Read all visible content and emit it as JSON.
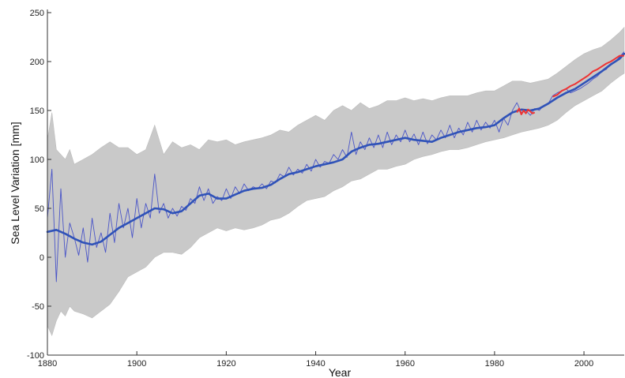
{
  "chart_data": {
    "type": "line",
    "title": "",
    "xlabel": "Year",
    "ylabel": "Sea Level Variation [mm]",
    "xlim": [
      1880,
      2009
    ],
    "ylim": [
      -100,
      250
    ],
    "x_ticks": [
      1880,
      1900,
      1920,
      1940,
      1960,
      1980,
      2000
    ],
    "y_ticks": [
      -100,
      -50,
      0,
      50,
      100,
      150,
      200,
      250
    ],
    "grid": false,
    "legend": "none",
    "colors": {
      "band": "#c9c9c9",
      "band_edge": "#bdbdbd",
      "annual_series": "#4a55c8",
      "smoothed_series": "#2f52b8",
      "satellite_series": "#ee3333",
      "axis": "#333333"
    },
    "series": [
      {
        "kind": "uncertainty-band",
        "x": [
          1880,
          1881,
          1882,
          1883,
          1884,
          1885,
          1886,
          1888,
          1890,
          1892,
          1894,
          1896,
          1898,
          1900,
          1902,
          1904,
          1906,
          1908,
          1910,
          1912,
          1914,
          1916,
          1918,
          1920,
          1922,
          1924,
          1926,
          1928,
          1930,
          1932,
          1934,
          1936,
          1938,
          1940,
          1942,
          1944,
          1946,
          1948,
          1950,
          1952,
          1954,
          1956,
          1958,
          1960,
          1962,
          1964,
          1966,
          1968,
          1970,
          1972,
          1974,
          1976,
          1978,
          1980,
          1982,
          1984,
          1986,
          1988,
          1990,
          1992,
          1994,
          1996,
          1998,
          2000,
          2002,
          2004,
          2006,
          2008,
          2009
        ],
        "lower": [
          -70,
          -80,
          -65,
          -55,
          -60,
          -50,
          -55,
          -58,
          -62,
          -55,
          -48,
          -35,
          -20,
          -15,
          -10,
          0,
          5,
          5,
          3,
          10,
          20,
          25,
          30,
          27,
          30,
          28,
          30,
          33,
          38,
          40,
          45,
          52,
          58,
          60,
          62,
          68,
          72,
          78,
          80,
          85,
          90,
          90,
          93,
          95,
          100,
          103,
          105,
          108,
          110,
          110,
          112,
          115,
          118,
          120,
          122,
          125,
          128,
          130,
          132,
          135,
          140,
          148,
          155,
          160,
          165,
          170,
          178,
          185,
          188
        ],
        "upper": [
          120,
          148,
          110,
          105,
          100,
          110,
          95,
          100,
          105,
          112,
          118,
          112,
          112,
          105,
          110,
          135,
          105,
          118,
          112,
          115,
          110,
          120,
          118,
          120,
          115,
          118,
          120,
          122,
          125,
          130,
          128,
          135,
          140,
          145,
          140,
          150,
          155,
          150,
          158,
          152,
          155,
          160,
          160,
          163,
          160,
          162,
          160,
          163,
          165,
          165,
          165,
          168,
          170,
          170,
          175,
          180,
          180,
          178,
          180,
          182,
          188,
          195,
          202,
          208,
          212,
          215,
          222,
          230,
          235
        ]
      },
      {
        "kind": "smoothed-reconstruction",
        "x": [
          1880,
          1882,
          1884,
          1886,
          1888,
          1890,
          1892,
          1894,
          1896,
          1898,
          1900,
          1902,
          1904,
          1906,
          1908,
          1910,
          1912,
          1914,
          1916,
          1918,
          1920,
          1922,
          1924,
          1926,
          1928,
          1930,
          1932,
          1934,
          1936,
          1938,
          1940,
          1942,
          1944,
          1946,
          1948,
          1950,
          1952,
          1954,
          1956,
          1958,
          1960,
          1962,
          1964,
          1966,
          1968,
          1970,
          1972,
          1974,
          1976,
          1978,
          1980,
          1982,
          1984,
          1986,
          1988,
          1990,
          1992,
          1994,
          1996,
          1998,
          2000,
          2002,
          2004,
          2006,
          2008,
          2009
        ],
        "values": [
          26,
          28,
          24,
          19,
          15,
          13,
          16,
          23,
          30,
          35,
          40,
          45,
          50,
          49,
          45,
          47,
          55,
          63,
          65,
          60,
          60,
          64,
          68,
          70,
          71,
          74,
          80,
          85,
          87,
          90,
          93,
          95,
          97,
          100,
          108,
          112,
          115,
          116,
          118,
          120,
          122,
          120,
          119,
          118,
          122,
          125,
          128,
          130,
          132,
          133,
          135,
          142,
          148,
          151,
          150,
          152,
          157,
          163,
          168,
          172,
          178,
          184,
          190,
          197,
          203,
          208
        ]
      },
      {
        "kind": "annual-reconstruction",
        "x": [
          1880,
          1881,
          1882,
          1883,
          1884,
          1885,
          1886,
          1887,
          1888,
          1889,
          1890,
          1891,
          1892,
          1893,
          1894,
          1895,
          1896,
          1897,
          1898,
          1899,
          1900,
          1901,
          1902,
          1903,
          1904,
          1905,
          1906,
          1907,
          1908,
          1909,
          1910,
          1911,
          1912,
          1913,
          1914,
          1915,
          1916,
          1917,
          1918,
          1919,
          1920,
          1921,
          1922,
          1923,
          1924,
          1925,
          1926,
          1927,
          1928,
          1929,
          1930,
          1931,
          1932,
          1933,
          1934,
          1935,
          1936,
          1937,
          1938,
          1939,
          1940,
          1941,
          1942,
          1943,
          1944,
          1945,
          1946,
          1947,
          1948,
          1949,
          1950,
          1951,
          1952,
          1953,
          1954,
          1955,
          1956,
          1957,
          1958,
          1959,
          1960,
          1961,
          1962,
          1963,
          1964,
          1965,
          1966,
          1967,
          1968,
          1969,
          1970,
          1971,
          1972,
          1973,
          1974,
          1975,
          1976,
          1977,
          1978,
          1979,
          1980,
          1981,
          1982,
          1983,
          1984,
          1985,
          1986,
          1987,
          1988,
          1989,
          1990,
          1991,
          1992,
          1993,
          1994,
          1995,
          1996,
          1997,
          1998,
          1999,
          2000,
          2001,
          2002,
          2003,
          2004,
          2005,
          2006,
          2007,
          2008,
          2009
        ],
        "values": [
          40,
          90,
          -25,
          70,
          0,
          35,
          20,
          2,
          30,
          -5,
          40,
          10,
          25,
          5,
          45,
          15,
          55,
          30,
          50,
          20,
          60,
          30,
          55,
          40,
          85,
          45,
          55,
          40,
          50,
          42,
          52,
          48,
          60,
          55,
          72,
          58,
          70,
          55,
          62,
          58,
          70,
          60,
          72,
          65,
          75,
          68,
          72,
          70,
          75,
          70,
          78,
          76,
          85,
          82,
          92,
          84,
          90,
          86,
          95,
          88,
          100,
          92,
          98,
          96,
          105,
          100,
          110,
          102,
          128,
          105,
          118,
          110,
          122,
          112,
          125,
          112,
          128,
          115,
          125,
          118,
          130,
          118,
          126,
          115,
          128,
          116,
          125,
          120,
          130,
          122,
          135,
          122,
          132,
          125,
          138,
          128,
          140,
          130,
          138,
          132,
          140,
          128,
          142,
          135,
          150,
          158,
          148,
          150,
          145,
          152,
          150,
          155,
          157,
          165,
          168,
          170,
          172,
          168,
          170,
          172,
          175,
          178,
          182,
          185,
          190,
          192,
          198,
          200,
          205,
          210
        ]
      },
      {
        "kind": "satellite-altimetry",
        "segments": [
          {
            "x": [
              1985,
              1985.5,
              1986,
              1986.5,
              1987,
              1987.5,
              1988,
              1988.5,
              1989
            ],
            "values": [
              148,
              152,
              146,
              150,
              147,
              151,
              149,
              147,
              148
            ]
          },
          {
            "x": [
              1993,
              1994,
              1995,
              1996,
              1997,
              1998,
              1999,
              2000,
              2001,
              2002,
              2003,
              2004,
              2005,
              2006,
              2007,
              2008,
              2009
            ],
            "values": [
              164,
              166,
              170,
              172,
              175,
              177,
              180,
              183,
              186,
              190,
              192,
              195,
              198,
              200,
              203,
              206,
              206
            ]
          }
        ]
      }
    ]
  }
}
